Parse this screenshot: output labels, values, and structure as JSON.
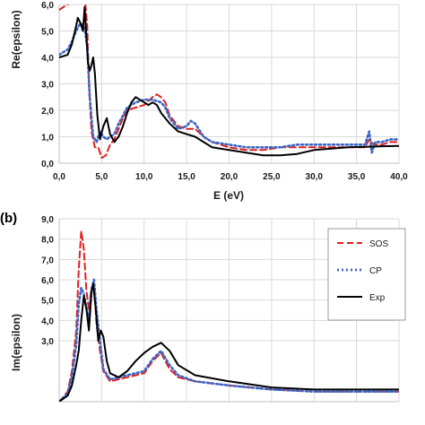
{
  "chart_data": [
    {
      "type": "line",
      "panel_label": "",
      "xlabel": "E (eV)",
      "ylabel": "Re(epsilon)",
      "xlim": [
        0,
        40
      ],
      "ylim": [
        0,
        6
      ],
      "grid": true,
      "x_ticks": [
        "0,0",
        "5,0",
        "10,0",
        "15,0",
        "20,0",
        "25,0",
        "30,0",
        "35,0",
        "40,0"
      ],
      "y_ticks": [
        "0,0",
        "1,0",
        "2,0",
        "3,0",
        "4,0",
        "5,0",
        "6,0"
      ],
      "series": [
        {
          "name": "SOS",
          "color": "#e02020",
          "dash": "7,4",
          "points": [
            [
              0,
              5.8
            ],
            [
              0.5,
              5.9
            ],
            [
              1,
              6.0
            ],
            [
              1.5,
              6.2
            ],
            [
              2,
              6.3
            ],
            [
              2.5,
              6.4
            ],
            [
              3,
              6.3
            ],
            [
              3.3,
              5.2
            ],
            [
              3.5,
              3.0
            ],
            [
              3.8,
              1.2
            ],
            [
              4.2,
              0.6
            ],
            [
              4.6,
              0.6
            ],
            [
              5,
              0.2
            ],
            [
              5.5,
              0.3
            ],
            [
              6,
              0.7
            ],
            [
              6.5,
              0.9
            ],
            [
              7,
              1.3
            ],
            [
              7.5,
              1.7
            ],
            [
              8,
              2.0
            ],
            [
              9,
              2.1
            ],
            [
              10,
              2.2
            ],
            [
              11,
              2.5
            ],
            [
              11.5,
              2.6
            ],
            [
              12,
              2.5
            ],
            [
              12.5,
              2.3
            ],
            [
              13,
              1.8
            ],
            [
              14,
              1.4
            ],
            [
              15,
              1.3
            ],
            [
              16,
              1.3
            ],
            [
              17,
              1.0
            ],
            [
              18,
              0.8
            ],
            [
              20,
              0.6
            ],
            [
              22,
              0.5
            ],
            [
              24,
              0.5
            ],
            [
              26,
              0.6
            ],
            [
              28,
              0.6
            ],
            [
              30,
              0.6
            ],
            [
              32,
              0.6
            ],
            [
              34,
              0.6
            ],
            [
              36,
              0.6
            ],
            [
              36.5,
              0.9
            ],
            [
              37,
              0.7
            ],
            [
              38,
              0.7
            ],
            [
              39,
              0.8
            ],
            [
              40,
              0.8
            ]
          ]
        },
        {
          "name": "CP",
          "color": "#3a66c4",
          "dash": "2,3",
          "points": [
            [
              0,
              4.1
            ],
            [
              0.5,
              4.2
            ],
            [
              1,
              4.3
            ],
            [
              1.5,
              4.6
            ],
            [
              2,
              5.0
            ],
            [
              2.5,
              5.3
            ],
            [
              3,
              5.1
            ],
            [
              3.3,
              4.4
            ],
            [
              3.6,
              2.5
            ],
            [
              4,
              1.0
            ],
            [
              4.4,
              0.8
            ],
            [
              4.8,
              1.2
            ],
            [
              5.2,
              1.0
            ],
            [
              5.6,
              0.9
            ],
            [
              6,
              1.0
            ],
            [
              6.5,
              1.1
            ],
            [
              7,
              1.5
            ],
            [
              7.5,
              1.8
            ],
            [
              8,
              2.1
            ],
            [
              9,
              2.3
            ],
            [
              10,
              2.4
            ],
            [
              11,
              2.4
            ],
            [
              12,
              2.3
            ],
            [
              12.5,
              2.1
            ],
            [
              13,
              1.7
            ],
            [
              14,
              1.3
            ],
            [
              15,
              1.4
            ],
            [
              15.5,
              1.6
            ],
            [
              16,
              1.5
            ],
            [
              17,
              1.0
            ],
            [
              18,
              0.8
            ],
            [
              20,
              0.7
            ],
            [
              22,
              0.6
            ],
            [
              24,
              0.6
            ],
            [
              26,
              0.6
            ],
            [
              28,
              0.7
            ],
            [
              30,
              0.7
            ],
            [
              32,
              0.7
            ],
            [
              34,
              0.7
            ],
            [
              36,
              0.7
            ],
            [
              36.5,
              1.2
            ],
            [
              36.8,
              0.4
            ],
            [
              37.2,
              0.8
            ],
            [
              38,
              0.8
            ],
            [
              39,
              0.9
            ],
            [
              40,
              0.9
            ]
          ]
        },
        {
          "name": "Exp",
          "color": "#000000",
          "dash": "",
          "points": [
            [
              0,
              4.0
            ],
            [
              1,
              4.1
            ],
            [
              1.5,
              4.5
            ],
            [
              2,
              5.2
            ],
            [
              2.2,
              5.5
            ],
            [
              2.5,
              5.3
            ],
            [
              2.8,
              5.0
            ],
            [
              3.0,
              5.9
            ],
            [
              3.2,
              4.8
            ],
            [
              3.4,
              3.8
            ],
            [
              3.6,
              3.5
            ],
            [
              3.8,
              3.7
            ],
            [
              4,
              4.0
            ],
            [
              4.2,
              3.4
            ],
            [
              4.5,
              1.8
            ],
            [
              4.8,
              0.9
            ],
            [
              5.2,
              1.4
            ],
            [
              5.6,
              1.7
            ],
            [
              6,
              1.1
            ],
            [
              6.5,
              0.8
            ],
            [
              7,
              1.0
            ],
            [
              7.5,
              1.4
            ],
            [
              8,
              1.9
            ],
            [
              8.5,
              2.3
            ],
            [
              9,
              2.5
            ],
            [
              9.5,
              2.4
            ],
            [
              10,
              2.3
            ],
            [
              10.5,
              2.2
            ],
            [
              11,
              2.3
            ],
            [
              11.5,
              2.2
            ],
            [
              12,
              1.9
            ],
            [
              13,
              1.5
            ],
            [
              14,
              1.2
            ],
            [
              15,
              1.1
            ],
            [
              16,
              1.0
            ],
            [
              17,
              0.8
            ],
            [
              18,
              0.6
            ],
            [
              20,
              0.5
            ],
            [
              22,
              0.4
            ],
            [
              24,
              0.3
            ],
            [
              26,
              0.3
            ],
            [
              28,
              0.35
            ],
            [
              30,
              0.5
            ],
            [
              32,
              0.55
            ],
            [
              34,
              0.6
            ],
            [
              36,
              0.62
            ],
            [
              38,
              0.64
            ],
            [
              40,
              0.65
            ]
          ]
        }
      ]
    },
    {
      "type": "line",
      "panel_label": "(b)",
      "xlabel": "",
      "ylabel": "Im(epsilon)",
      "xlim": [
        0,
        40
      ],
      "ylim": [
        0,
        9
      ],
      "grid": true,
      "y_ticks": [
        "3,0",
        "4,0",
        "5,0",
        "6,0",
        "7,0",
        "8,0",
        "9,0"
      ],
      "legend_position": "top-right",
      "series": [
        {
          "name": "SOS",
          "color": "#e02020",
          "dash": "7,4",
          "points": [
            [
              0,
              0
            ],
            [
              1,
              0.5
            ],
            [
              1.5,
              1.5
            ],
            [
              2,
              3.5
            ],
            [
              2.3,
              6.5
            ],
            [
              2.6,
              8.4
            ],
            [
              2.9,
              7.5
            ],
            [
              3.2,
              5.5
            ],
            [
              3.5,
              4.5
            ],
            [
              3.8,
              5.6
            ],
            [
              4.1,
              5.8
            ],
            [
              4.4,
              3.8
            ],
            [
              4.8,
              2.5
            ],
            [
              5.2,
              1.5
            ],
            [
              6,
              1.0
            ],
            [
              8,
              1.2
            ],
            [
              10,
              1.4
            ],
            [
              11,
              2.0
            ],
            [
              12,
              2.4
            ],
            [
              13,
              1.6
            ],
            [
              14,
              1.2
            ],
            [
              16,
              1.0
            ],
            [
              20,
              0.8
            ],
            [
              25,
              0.6
            ],
            [
              30,
              0.5
            ],
            [
              35,
              0.5
            ],
            [
              40,
              0.5
            ]
          ]
        },
        {
          "name": "CP",
          "color": "#3a66c4",
          "dash": "2,3",
          "points": [
            [
              0,
              0
            ],
            [
              1,
              0.4
            ],
            [
              1.5,
              1.2
            ],
            [
              2,
              2.8
            ],
            [
              2.3,
              4.8
            ],
            [
              2.6,
              5.6
            ],
            [
              2.9,
              5.3
            ],
            [
              3.2,
              4.6
            ],
            [
              3.5,
              4.0
            ],
            [
              3.8,
              5.5
            ],
            [
              4.1,
              6.0
            ],
            [
              4.4,
              4.5
            ],
            [
              4.8,
              3.0
            ],
            [
              5.2,
              1.6
            ],
            [
              6,
              1.1
            ],
            [
              8,
              1.3
            ],
            [
              10,
              1.5
            ],
            [
              11,
              2.1
            ],
            [
              12,
              2.5
            ],
            [
              13,
              1.8
            ],
            [
              14,
              1.3
            ],
            [
              16,
              1.0
            ],
            [
              20,
              0.8
            ],
            [
              25,
              0.6
            ],
            [
              30,
              0.5
            ],
            [
              35,
              0.5
            ],
            [
              40,
              0.5
            ]
          ]
        },
        {
          "name": "Exp",
          "color": "#000000",
          "dash": "",
          "points": [
            [
              0,
              0
            ],
            [
              1,
              0.3
            ],
            [
              1.5,
              0.8
            ],
            [
              2,
              1.8
            ],
            [
              2.3,
              2.5
            ],
            [
              2.6,
              4.0
            ],
            [
              2.9,
              5.2
            ],
            [
              3.2,
              4.6
            ],
            [
              3.5,
              3.5
            ],
            [
              3.8,
              5.4
            ],
            [
              4.0,
              5.8
            ],
            [
              4.3,
              4.6
            ],
            [
              4.6,
              3.0
            ],
            [
              4.9,
              3.5
            ],
            [
              5.2,
              3.2
            ],
            [
              5.6,
              2.0
            ],
            [
              6,
              1.4
            ],
            [
              7,
              1.2
            ],
            [
              8,
              1.5
            ],
            [
              9,
              2.0
            ],
            [
              10,
              2.4
            ],
            [
              11,
              2.7
            ],
            [
              12,
              2.9
            ],
            [
              13,
              2.5
            ],
            [
              14,
              1.8
            ],
            [
              16,
              1.3
            ],
            [
              20,
              1.0
            ],
            [
              25,
              0.7
            ],
            [
              30,
              0.6
            ],
            [
              35,
              0.6
            ],
            [
              40,
              0.6
            ]
          ]
        }
      ]
    }
  ]
}
